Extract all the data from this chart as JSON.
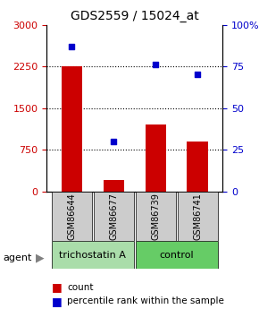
{
  "title": "GDS2559 / 15024_at",
  "samples": [
    "GSM86644",
    "GSM86677",
    "GSM86739",
    "GSM86741"
  ],
  "counts": [
    2250,
    200,
    1200,
    900
  ],
  "percentiles": [
    87,
    30,
    76,
    70
  ],
  "ylim_left": [
    0,
    3000
  ],
  "ylim_right": [
    0,
    100
  ],
  "yticks_left": [
    0,
    750,
    1500,
    2250,
    3000
  ],
  "yticks_right": [
    0,
    25,
    50,
    75,
    100
  ],
  "ytick_labels_left": [
    "0",
    "750",
    "1500",
    "2250",
    "3000"
  ],
  "ytick_labels_right": [
    "0",
    "25",
    "50",
    "75",
    "100%"
  ],
  "bar_color": "#cc0000",
  "dot_color": "#0000cc",
  "grid_color": "#000000",
  "agent_groups": [
    {
      "label": "trichostatin A",
      "indices": [
        0,
        1
      ],
      "color": "#aaddaa"
    },
    {
      "label": "control",
      "indices": [
        2,
        3
      ],
      "color": "#66cc66"
    }
  ],
  "legend_count_label": "count",
  "legend_pct_label": "percentile rank within the sample",
  "agent_label": "agent",
  "background_color": "#ffffff",
  "sample_box_color": "#cccccc",
  "bar_width": 0.5
}
